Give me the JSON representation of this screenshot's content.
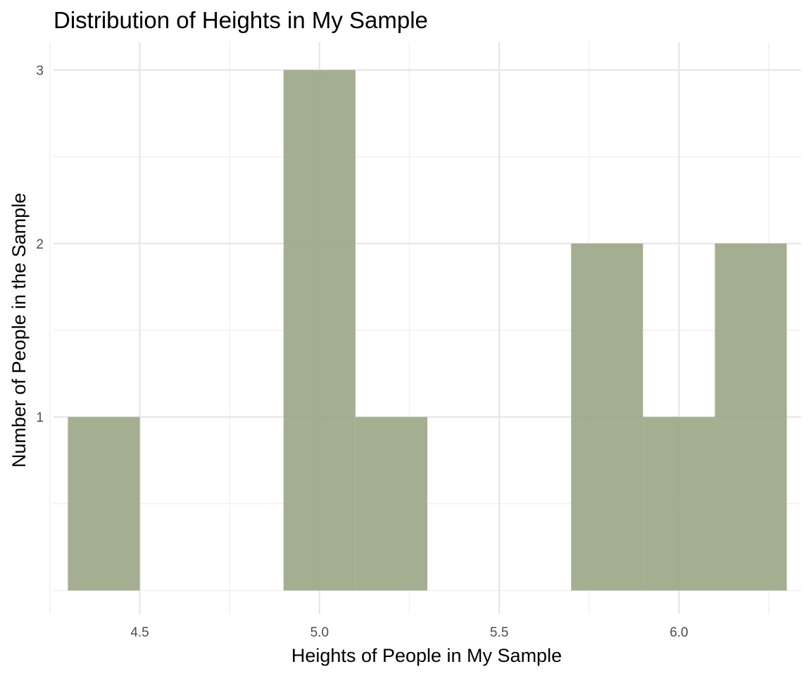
{
  "chart_data": {
    "type": "histogram",
    "title": "Distribution of Heights in My Sample",
    "xlabel": "Heights of People in My Sample",
    "ylabel": "Number of People in the Sample",
    "bin_width": 0.2,
    "bins": [
      {
        "start": 4.3,
        "end": 4.5,
        "count": 1
      },
      {
        "start": 4.9,
        "end": 5.1,
        "count": 3
      },
      {
        "start": 5.1,
        "end": 5.3,
        "count": 1
      },
      {
        "start": 5.7,
        "end": 5.9,
        "count": 2
      },
      {
        "start": 5.9,
        "end": 6.1,
        "count": 1
      },
      {
        "start": 6.1,
        "end": 6.3,
        "count": 2
      }
    ],
    "xlim": [
      4.26,
      6.34
    ],
    "ylim": [
      0,
      3.15
    ],
    "x_ticks": [
      {
        "value": 4.5,
        "label": "4.5"
      },
      {
        "value": 5.0,
        "label": "5.0"
      },
      {
        "value": 5.5,
        "label": "5.5"
      },
      {
        "value": 6.0,
        "label": "6.0"
      }
    ],
    "y_ticks": [
      {
        "value": 1,
        "label": "1"
      },
      {
        "value": 2,
        "label": "2"
      },
      {
        "value": 3,
        "label": "3"
      }
    ],
    "bar_color": "#9aa686",
    "bar_opacity": 0.9,
    "grid": true
  }
}
